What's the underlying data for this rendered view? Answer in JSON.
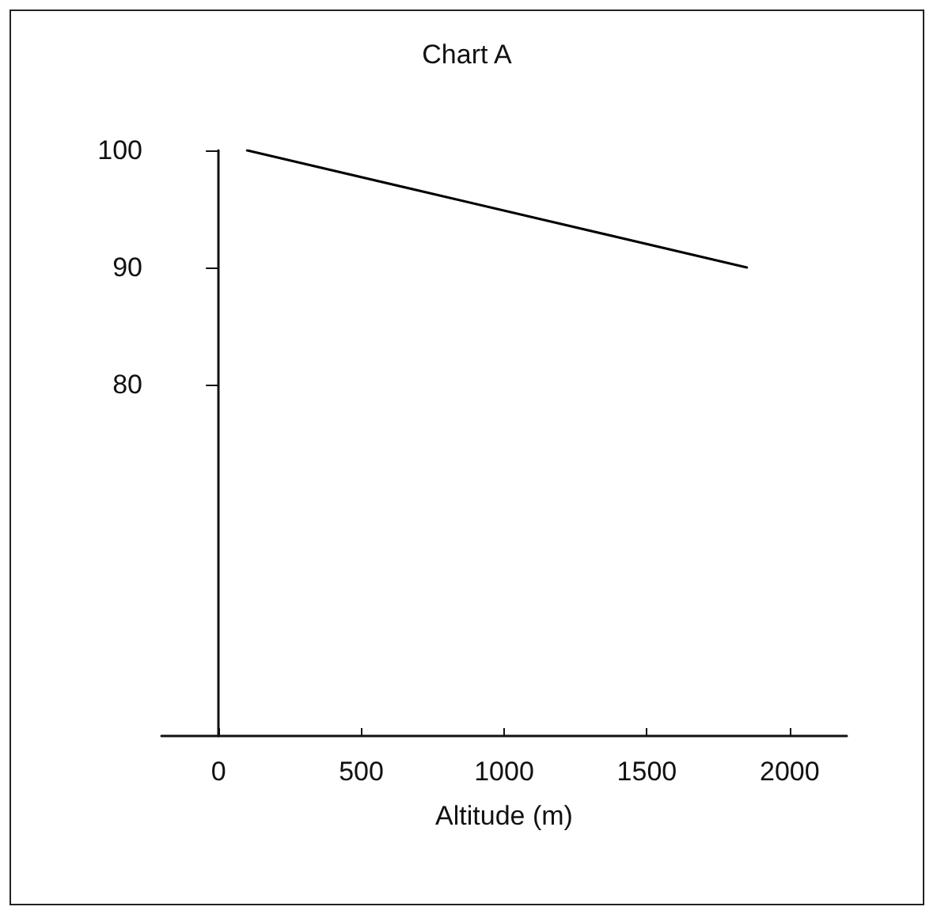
{
  "chart_data": {
    "type": "line",
    "title": "Chart A",
    "xlabel": "Altitude (m)",
    "x": [
      100,
      1850
    ],
    "series": [
      {
        "color": "#000000",
        "values": [
          100,
          90
        ]
      }
    ],
    "xlim": [
      -200,
      2200
    ],
    "xticks": [
      0,
      500,
      1000,
      1500,
      2000
    ],
    "ylim": [
      50,
      100
    ],
    "yticks": [
      80,
      90,
      100
    ],
    "marker": "none",
    "line_style": "solid"
  }
}
